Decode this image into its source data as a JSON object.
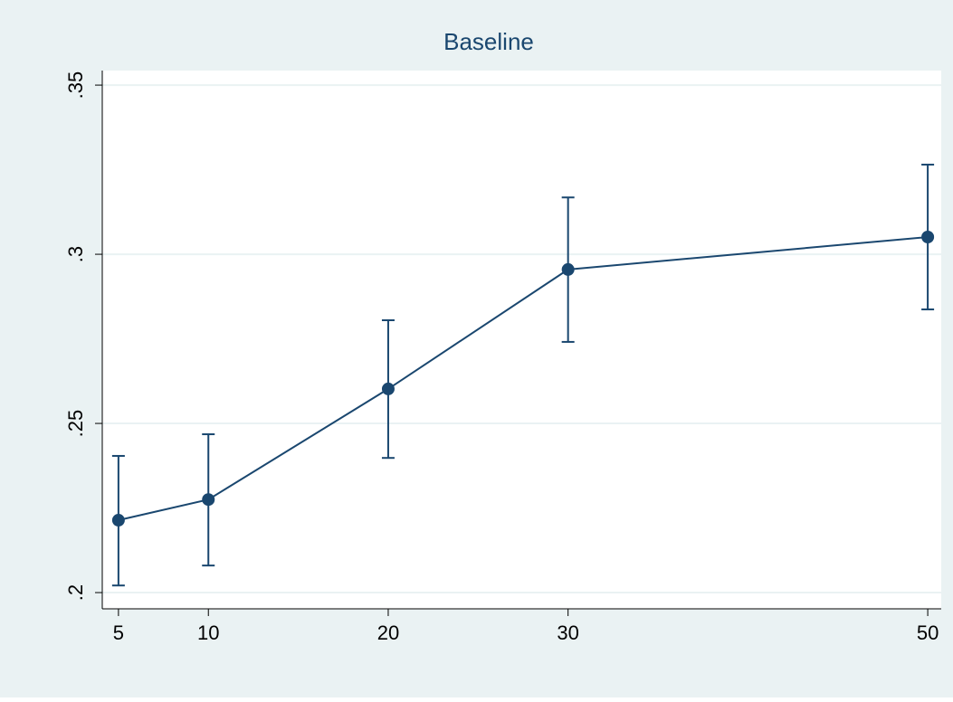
{
  "chart_data": {
    "type": "line",
    "title": "Baseline",
    "x": [
      5,
      10,
      20,
      30,
      50
    ],
    "series": [
      {
        "color": "#1a476f",
        "values": [
          0.2214,
          0.2275,
          0.2602,
          0.2955,
          0.3051
        ],
        "lower": [
          0.2021,
          0.208,
          0.2398,
          0.2741,
          0.2837
        ],
        "upper": [
          0.2404,
          0.2468,
          0.2805,
          0.3168,
          0.3265
        ]
      }
    ],
    "xlim": [
      4.1,
      50.75
    ],
    "ylim": [
      0.1952,
      0.3543
    ],
    "xticks": [
      5,
      10,
      20,
      30,
      50
    ],
    "yticks": [
      {
        "value": 0.2,
        "label": ".2"
      },
      {
        "value": 0.25,
        "label": ".25"
      },
      {
        "value": 0.3,
        "label": ".3"
      },
      {
        "value": 0.35,
        "label": ".35"
      }
    ],
    "grid": true
  }
}
